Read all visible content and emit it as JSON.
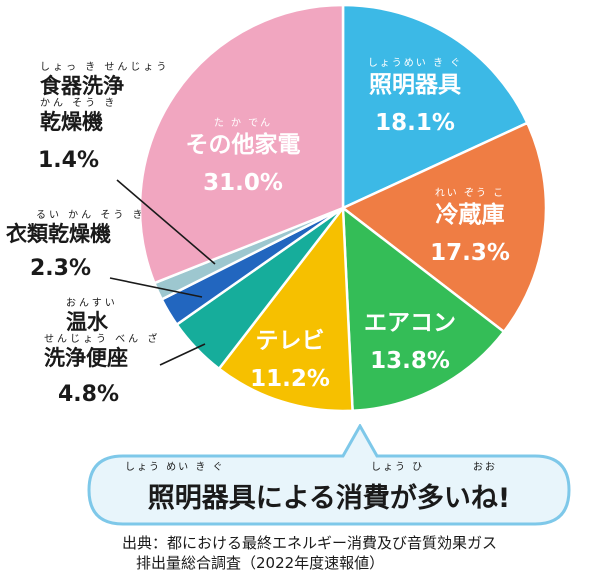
{
  "chart_data": {
    "type": "pie",
    "slices": [
      {
        "label": "照明器具",
        "ruby": "しょうめい き ぐ",
        "value": 18.1,
        "display": "18.1%",
        "color": "#3cb9e6",
        "text_color": "#ffffff"
      },
      {
        "label": "冷蔵庫",
        "ruby": "れい ぞう こ",
        "value": 17.3,
        "display": "17.3%",
        "color": "#ef7d44",
        "text_color": "#ffffff"
      },
      {
        "label": "エアコン",
        "ruby": "",
        "value": 13.8,
        "display": "13.8%",
        "color": "#34bd57",
        "text_color": "#ffffff"
      },
      {
        "label": "テレビ",
        "ruby": "",
        "value": 11.2,
        "display": "11.2%",
        "color": "#f6c000",
        "text_color": "#ffffff"
      },
      {
        "label": "温水洗浄便座",
        "ruby": "おんすい せんじょう べん ざ",
        "value": 4.8,
        "display": "4.8%",
        "color": "#16ad9b",
        "text_color": "#1a1a1a"
      },
      {
        "label": "衣類乾燥機",
        "ruby": "るい かん そう き",
        "value": 2.3,
        "display": "2.3%",
        "color": "#2266bf",
        "text_color": "#1a1a1a"
      },
      {
        "label": "食器洗浄乾燥機",
        "ruby": "しょっ き せん じょう かん そう き",
        "value": 1.4,
        "display": "1.4%",
        "color": "#9dc7cf",
        "text_color": "#1a1a1a"
      },
      {
        "label": "その他家電",
        "ruby": "た か でん",
        "value": 31.0,
        "display": "31.0%",
        "color": "#f1a6c0",
        "text_color": "#ffffff"
      }
    ]
  },
  "external_labels": {
    "dishwasher": {
      "ruby1": "しょっ き せんじょう",
      "line1": "食器洗浄",
      "ruby2": "かん そう き",
      "line2": "乾燥機",
      "pct": "1.4%"
    },
    "dryer": {
      "ruby1": "るい かん そう き",
      "line1": "衣類乾燥機",
      "pct": "2.3%"
    },
    "toilet": {
      "ruby1": "おんすい",
      "line1": "温水",
      "ruby2": "せんじょう べん ざ",
      "line2": "洗浄便座",
      "pct": "4.8%"
    }
  },
  "callout": {
    "ruby_a": "しょう めい   き   ぐ",
    "ruby_b": "しょう    ひ",
    "ruby_c": "おお",
    "message": "照明器具による消費が多いね!",
    "border_color": "#7ec8e9",
    "fill_color": "#e8f5fb"
  },
  "source": {
    "line1": "出典：都における最終エネルギー消費及び音質効果ガス",
    "line2": "排出量総合調査（2022年度速報値）"
  }
}
